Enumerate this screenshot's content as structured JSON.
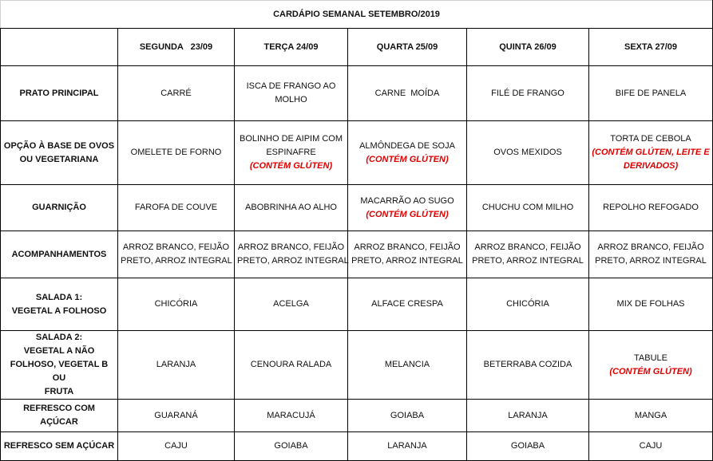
{
  "title": "CARDÁPIO SEMANAL SETEMBRO/2019",
  "days": [
    "SEGUNDA   23/09",
    "TERÇA 24/09",
    "QUARTA 25/09",
    "QUINTA 26/09",
    "SEXTA 27/09"
  ],
  "colors": {
    "allergen_note": "#e00000"
  },
  "rows": [
    {
      "label": [
        "PRATO PRINCIPAL"
      ],
      "cells": [
        [
          {
            "t": "CARRÉ"
          }
        ],
        [
          {
            "t": "ISCA DE FRANGO AO"
          },
          {
            "t": "MOLHO"
          }
        ],
        [
          {
            "t": "CARNE  MOÍDA"
          }
        ],
        [
          {
            "t": "FILÉ DE FRANGO"
          }
        ],
        [
          {
            "t": "BIFE DE PANELA"
          }
        ]
      ]
    },
    {
      "label": [
        "OPÇÃO À BASE DE OVOS",
        "OU VEGETARIANA"
      ],
      "cells": [
        [
          {
            "t": "OMELETE DE FORNO"
          }
        ],
        [
          {
            "t": "BOLINHO DE AIPIM COM"
          },
          {
            "t": "ESPINAFRE"
          },
          {
            "t": "(CONTÉM GLÚTEN)",
            "red": true
          }
        ],
        [
          {
            "t": "ALMÔNDEGA DE SOJA"
          },
          {
            "t": "(CONTÉM GLÚTEN)",
            "red": true
          }
        ],
        [
          {
            "t": "OVOS MEXIDOS"
          }
        ],
        [
          {
            "t": "TORTA DE CEBOLA"
          },
          {
            "t": "(CONTÉM GLÚTEN, LEITE E",
            "red": true
          },
          {
            "t": "DERIVADOS)",
            "red": true
          }
        ]
      ]
    },
    {
      "label": [
        "GUARNIÇÃO"
      ],
      "cells": [
        [
          {
            "t": "FAROFA DE COUVE"
          }
        ],
        [
          {
            "t": "ABOBRINHA AO ALHO"
          }
        ],
        [
          {
            "t": "MACARRÃO AO SUGO"
          },
          {
            "t": "(CONTÉM GLÚTEN)",
            "red": true
          }
        ],
        [
          {
            "t": "CHUCHU COM MILHO"
          }
        ],
        [
          {
            "t": "REPOLHO REFOGADO"
          }
        ]
      ]
    },
    {
      "label": [
        "ACOMPANHAMENTOS"
      ],
      "cells": [
        [
          {
            "t": "ARROZ BRANCO, FEIJÃO"
          },
          {
            "t": "PRETO, ARROZ INTEGRAL"
          }
        ],
        [
          {
            "t": "ARROZ BRANCO, FEIJÃO"
          },
          {
            "t": "PRETO, ARROZ INTEGRAL"
          }
        ],
        [
          {
            "t": "ARROZ BRANCO, FEIJÃO"
          },
          {
            "t": "PRETO, ARROZ INTEGRAL"
          }
        ],
        [
          {
            "t": "ARROZ BRANCO, FEIJÃO"
          },
          {
            "t": "PRETO, ARROZ INTEGRAL"
          }
        ],
        [
          {
            "t": "ARROZ BRANCO, FEIJÃO"
          },
          {
            "t": "PRETO, ARROZ INTEGRAL"
          }
        ]
      ]
    },
    {
      "label": [
        "SALADA 1:",
        "VEGETAL A FOLHOSO"
      ],
      "cells": [
        [
          {
            "t": "CHICÓRIA"
          }
        ],
        [
          {
            "t": "ACELGA"
          }
        ],
        [
          {
            "t": "ALFACE CRESPA"
          }
        ],
        [
          {
            "t": "CHICÓRIA"
          }
        ],
        [
          {
            "t": "MIX DE FOLHAS"
          }
        ]
      ]
    },
    {
      "label": [
        "SALADA 2:",
        "VEGETAL A NÃO",
        "FOLHOSO, VEGETAL B OU",
        "FRUTA"
      ],
      "cells": [
        [
          {
            "t": "LARANJA"
          }
        ],
        [
          {
            "t": "CENOURA RALADA"
          }
        ],
        [
          {
            "t": "MELANCIA"
          }
        ],
        [
          {
            "t": "BETERRABA COZIDA"
          }
        ],
        [
          {
            "t": "TABULE"
          },
          {
            "t": "(CONTÉM GLÚTEN)",
            "red": true
          }
        ]
      ]
    },
    {
      "label": [
        "REFRESCO COM AÇÚCAR"
      ],
      "cells": [
        [
          {
            "t": "GUARANÁ"
          }
        ],
        [
          {
            "t": "MARACUJÁ"
          }
        ],
        [
          {
            "t": "GOIABA"
          }
        ],
        [
          {
            "t": "LARANJA"
          }
        ],
        [
          {
            "t": "MANGA"
          }
        ]
      ]
    },
    {
      "label": [
        "REFRESCO SEM AÇÚCAR"
      ],
      "cells": [
        [
          {
            "t": "CAJU"
          }
        ],
        [
          {
            "t": "GOIABA"
          }
        ],
        [
          {
            "t": "LARANJA"
          }
        ],
        [
          {
            "t": "GOIABA"
          }
        ],
        [
          {
            "t": "CAJU"
          }
        ]
      ]
    }
  ]
}
